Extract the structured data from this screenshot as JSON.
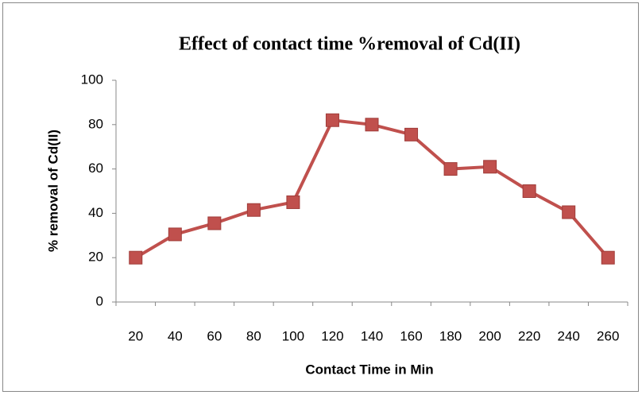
{
  "chart_data": {
    "type": "line",
    "title": "Effect of contact time %removal of Cd(II)",
    "x_label": "Contact Time in Min",
    "y_label": "% removal of Cd(II)",
    "categories": [
      "20",
      "40",
      "60",
      "80",
      "100",
      "120",
      "140",
      "160",
      "180",
      "200",
      "220",
      "240",
      "260"
    ],
    "series": [
      {
        "name": "% removal of Cd(II)",
        "color": "#c0504d",
        "values": [
          20,
          30.5,
          35.5,
          41.5,
          45,
          82,
          80,
          75.5,
          60,
          61,
          50,
          40.5,
          20
        ]
      }
    ],
    "ylim": [
      0,
      100
    ],
    "yticks": [
      0,
      20,
      40,
      60,
      80,
      100
    ],
    "grid": false
  }
}
